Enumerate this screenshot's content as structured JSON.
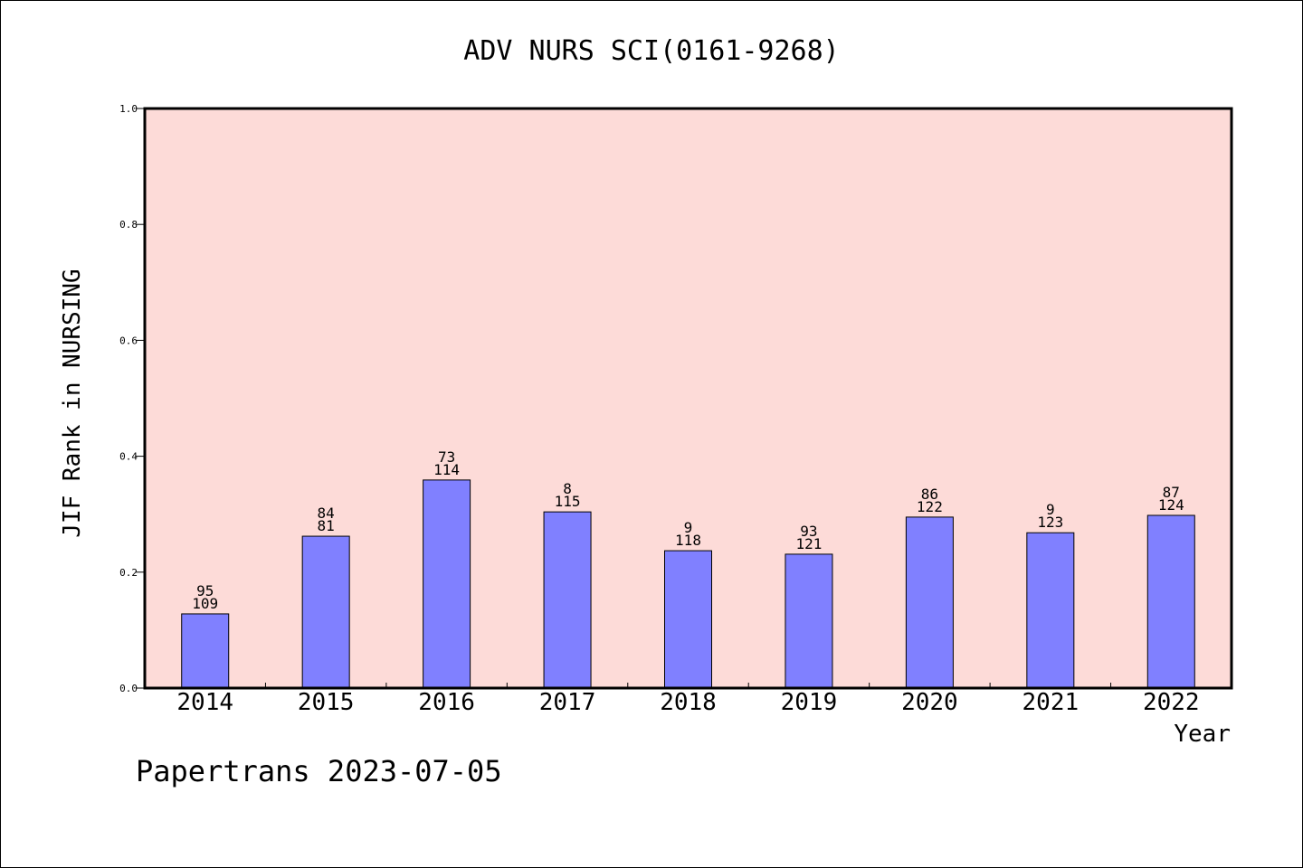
{
  "chart_data": {
    "type": "bar",
    "title": "ADV NURS SCI(0161-9268)",
    "xlabel": "Year",
    "ylabel": "JIF Rank in NURSING",
    "ylim": [
      0,
      1
    ],
    "yticks": [
      "0.0",
      "0.2",
      "0.4",
      "0.6",
      "0.8",
      "1.0"
    ],
    "categories": [
      "2014",
      "2015",
      "2016",
      "2017",
      "2018",
      "2019",
      "2020",
      "2021",
      "2022"
    ],
    "values": [
      0.128,
      0.262,
      0.359,
      0.304,
      0.237,
      0.231,
      0.295,
      0.268,
      0.298
    ],
    "labels_top": [
      "95",
      "84",
      "73",
      "8",
      "9",
      "93",
      "86",
      "9",
      "87"
    ],
    "labels_bottom": [
      "109",
      "81",
      "114",
      "115",
      "118",
      "121",
      "122",
      "123",
      "124"
    ],
    "colors": {
      "plot_bg": "#fddbd8",
      "bar": "#8080ff",
      "bar_edge": "#000000"
    },
    "grid": false
  },
  "footer": {
    "text": "Papertrans 2023-07-05"
  }
}
